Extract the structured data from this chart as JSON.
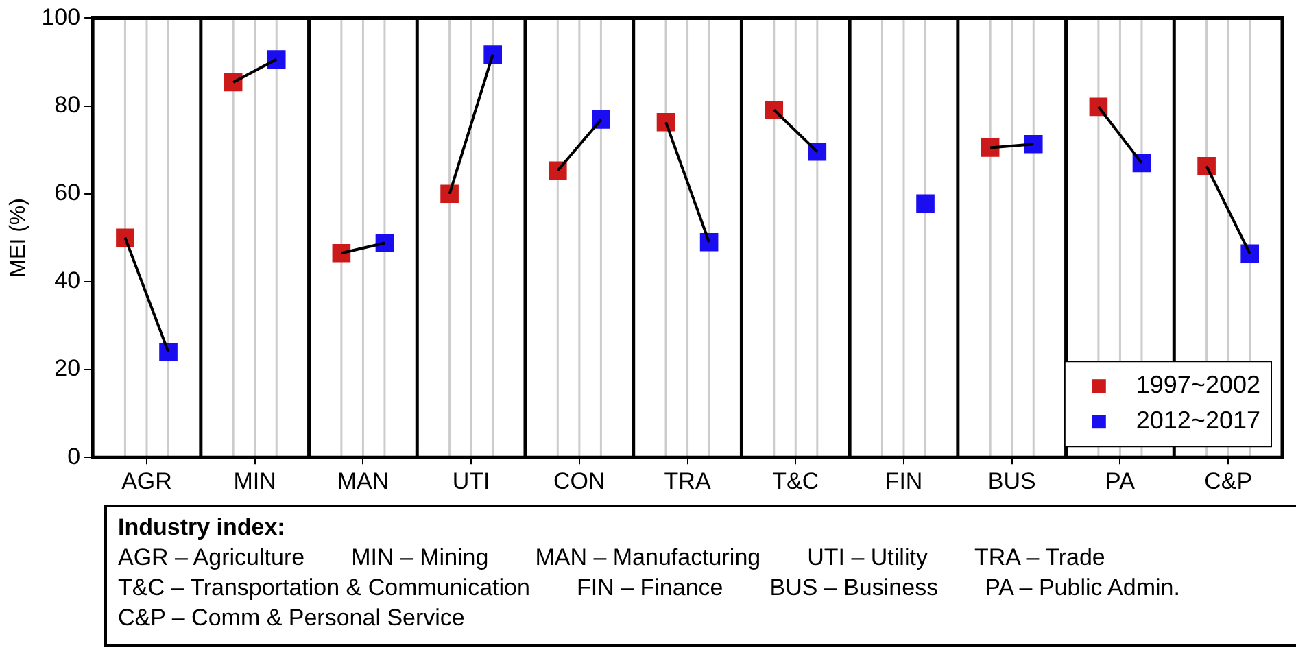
{
  "chart_data": {
    "type": "scatter",
    "ylabel": "MEI (%)",
    "categories": [
      null,
      null,
      "AGR",
      null,
      null,
      null,
      null,
      "MIN",
      null,
      null,
      null,
      null,
      "MAN",
      null,
      null,
      null,
      null,
      "UTI",
      null,
      null,
      null,
      null,
      "CON",
      null,
      null,
      null,
      null,
      "TRA",
      null,
      null,
      null,
      null,
      "T&C",
      null,
      null,
      null,
      null,
      "FIN",
      null,
      null,
      null,
      null,
      "BUS",
      null,
      null,
      null,
      null,
      "PA",
      null,
      null,
      null,
      null,
      "C&P",
      null,
      null
    ],
    "series": [
      {
        "type": "line",
        "color": "#000000",
        "marker": "none",
        "values": [
          null,
          50,
          null,
          24,
          null,
          null,
          85.4,
          null,
          90.6,
          null,
          null,
          46.5,
          null,
          48.8,
          null,
          null,
          60,
          null,
          91.7,
          null,
          null,
          65.3,
          null,
          76.9,
          null,
          null,
          76.3,
          null,
          49,
          null,
          null,
          79.1,
          null,
          69.6,
          null,
          null,
          null,
          null,
          null,
          null,
          null,
          70.5,
          null,
          71.3,
          null,
          null,
          79.8,
          null,
          67,
          null,
          null,
          66.3,
          null,
          46.4,
          null
        ]
      },
      {
        "name": "1997~2002",
        "color": "#cc1a1a",
        "values": [
          null,
          50,
          null,
          null,
          null,
          null,
          85.4,
          null,
          null,
          null,
          null,
          46.5,
          null,
          null,
          null,
          null,
          60,
          null,
          null,
          null,
          null,
          65.3,
          null,
          null,
          null,
          null,
          76.3,
          null,
          null,
          null,
          null,
          79.1,
          null,
          null,
          null,
          null,
          null,
          null,
          null,
          null,
          null,
          70.5,
          null,
          null,
          null,
          null,
          79.8,
          null,
          null,
          null,
          null,
          66.3,
          null,
          null,
          null
        ]
      },
      {
        "name": "2012~2017",
        "color": "#1a0df0",
        "values": [
          null,
          null,
          null,
          24,
          null,
          null,
          null,
          null,
          90.6,
          null,
          null,
          null,
          null,
          48.8,
          null,
          null,
          null,
          null,
          91.7,
          null,
          null,
          null,
          null,
          76.9,
          null,
          null,
          null,
          null,
          49,
          null,
          null,
          null,
          null,
          69.6,
          null,
          null,
          null,
          null,
          57.8,
          null,
          null,
          null,
          null,
          71.3,
          null,
          null,
          null,
          null,
          67,
          null,
          null,
          null,
          null,
          46.4,
          null
        ]
      }
    ],
    "ylim": [
      0,
      100
    ],
    "yticks": [
      0,
      20,
      40,
      60,
      80,
      100
    ],
    "grid": "x",
    "legend": "bottom right",
    "marker": "square",
    "annotations": [
      "Industry index:",
      "AGR – Agriculture",
      "MIN – Mining",
      "MAN – Manufacturing",
      "UTI – Utility",
      "TRA  – Trade",
      "T&C – Transportation & Communication",
      "FIN – Finance",
      "BUS – Business",
      "PA – Public Admin.",
      "C&P – Comm & Personal Service"
    ]
  }
}
